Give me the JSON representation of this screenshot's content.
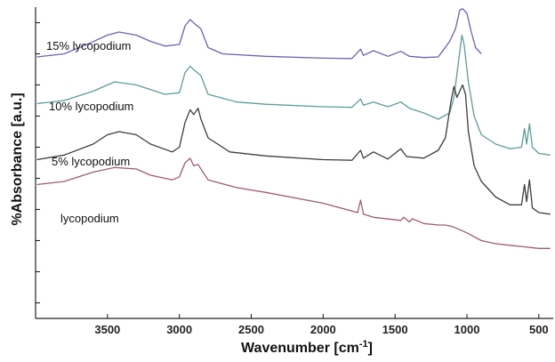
{
  "chart_data": {
    "type": "line",
    "title": "",
    "xlabel": "Wavenumber [cm",
    "xlabel_sup": "-1",
    "xlabel_end": "]",
    "ylabel": "%Absorbance [a.u.]",
    "x_reversed": true,
    "xlim": [
      4000,
      400
    ],
    "ylim": [
      0,
      10
    ],
    "xticks": [
      3500,
      3000,
      2500,
      2000,
      1500,
      1000,
      500
    ],
    "yticks_unlabeled": 10,
    "grid": false,
    "series": [
      {
        "name": "15% lycopodium",
        "color": "#6a62b5",
        "points": [
          [
            3990,
            8.4
          ],
          [
            3800,
            8.5
          ],
          [
            3620,
            8.85
          ],
          [
            3500,
            9.1
          ],
          [
            3420,
            9.2
          ],
          [
            3300,
            9.1
          ],
          [
            3200,
            8.9
          ],
          [
            3100,
            8.75
          ],
          [
            3000,
            8.8
          ],
          [
            2960,
            9.4
          ],
          [
            2925,
            9.6
          ],
          [
            2890,
            9.45
          ],
          [
            2850,
            9.3
          ],
          [
            2800,
            8.7
          ],
          [
            2700,
            8.5
          ],
          [
            2400,
            8.42
          ],
          [
            2000,
            8.36
          ],
          [
            1800,
            8.35
          ],
          [
            1740,
            8.65
          ],
          [
            1720,
            8.45
          ],
          [
            1650,
            8.6
          ],
          [
            1550,
            8.42
          ],
          [
            1460,
            8.58
          ],
          [
            1400,
            8.42
          ],
          [
            1300,
            8.38
          ],
          [
            1200,
            8.4
          ],
          [
            1120,
            8.9
          ],
          [
            1080,
            9.3
          ],
          [
            1050,
            9.9
          ],
          [
            1030,
            9.95
          ],
          [
            1000,
            9.8
          ],
          [
            970,
            9.2
          ],
          [
            940,
            8.7
          ],
          [
            900,
            8.5
          ]
        ]
      },
      {
        "name": "10% lycopodium",
        "color": "#5b9e9a",
        "points": [
          [
            3990,
            6.9
          ],
          [
            3800,
            7.0
          ],
          [
            3600,
            7.3
          ],
          [
            3450,
            7.6
          ],
          [
            3300,
            7.5
          ],
          [
            3100,
            7.2
          ],
          [
            3000,
            7.25
          ],
          [
            2960,
            7.9
          ],
          [
            2925,
            8.1
          ],
          [
            2890,
            7.95
          ],
          [
            2850,
            7.8
          ],
          [
            2800,
            7.2
          ],
          [
            2600,
            6.95
          ],
          [
            2400,
            6.88
          ],
          [
            2000,
            6.8
          ],
          [
            1800,
            6.78
          ],
          [
            1740,
            7.05
          ],
          [
            1720,
            6.85
          ],
          [
            1650,
            6.95
          ],
          [
            1550,
            6.8
          ],
          [
            1460,
            6.95
          ],
          [
            1400,
            6.75
          ],
          [
            1300,
            6.6
          ],
          [
            1200,
            6.4
          ],
          [
            1120,
            6.6
          ],
          [
            1090,
            7.1
          ],
          [
            1060,
            8.2
          ],
          [
            1035,
            9.1
          ],
          [
            1020,
            8.8
          ],
          [
            990,
            7.6
          ],
          [
            950,
            6.5
          ],
          [
            900,
            5.9
          ],
          [
            800,
            5.6
          ],
          [
            700,
            5.45
          ],
          [
            620,
            5.5
          ],
          [
            600,
            6.1
          ],
          [
            585,
            5.6
          ],
          [
            565,
            6.25
          ],
          [
            545,
            5.5
          ],
          [
            500,
            5.3
          ],
          [
            420,
            5.25
          ]
        ]
      },
      {
        "name": "5% lycopodium",
        "color": "#3d3d3d",
        "points": [
          [
            3990,
            5.1
          ],
          [
            3800,
            5.25
          ],
          [
            3600,
            5.6
          ],
          [
            3500,
            5.9
          ],
          [
            3420,
            6.0
          ],
          [
            3300,
            5.9
          ],
          [
            3200,
            5.6
          ],
          [
            3050,
            5.35
          ],
          [
            3000,
            5.5
          ],
          [
            2960,
            6.3
          ],
          [
            2925,
            6.7
          ],
          [
            2900,
            6.55
          ],
          [
            2870,
            6.75
          ],
          [
            2850,
            6.4
          ],
          [
            2800,
            5.8
          ],
          [
            2650,
            5.35
          ],
          [
            2400,
            5.22
          ],
          [
            2000,
            5.1
          ],
          [
            1800,
            5.08
          ],
          [
            1740,
            5.4
          ],
          [
            1720,
            5.15
          ],
          [
            1650,
            5.35
          ],
          [
            1550,
            5.12
          ],
          [
            1460,
            5.45
          ],
          [
            1420,
            5.2
          ],
          [
            1300,
            5.15
          ],
          [
            1200,
            5.4
          ],
          [
            1150,
            5.8
          ],
          [
            1110,
            7.0
          ],
          [
            1090,
            7.45
          ],
          [
            1070,
            7.1
          ],
          [
            1050,
            7.3
          ],
          [
            1030,
            7.5
          ],
          [
            1010,
            7.2
          ],
          [
            990,
            6.0
          ],
          [
            950,
            4.9
          ],
          [
            900,
            4.4
          ],
          [
            800,
            3.9
          ],
          [
            700,
            3.65
          ],
          [
            620,
            3.65
          ],
          [
            600,
            4.3
          ],
          [
            585,
            3.75
          ],
          [
            565,
            4.45
          ],
          [
            545,
            3.55
          ],
          [
            500,
            3.4
          ],
          [
            420,
            3.35
          ]
        ]
      },
      {
        "name": "lycopodium",
        "color": "#a05c6e",
        "points": [
          [
            3990,
            4.3
          ],
          [
            3800,
            4.4
          ],
          [
            3600,
            4.7
          ],
          [
            3450,
            4.85
          ],
          [
            3300,
            4.8
          ],
          [
            3200,
            4.6
          ],
          [
            3050,
            4.45
          ],
          [
            3000,
            4.55
          ],
          [
            2960,
            5.0
          ],
          [
            2925,
            5.15
          ],
          [
            2900,
            4.9
          ],
          [
            2870,
            4.95
          ],
          [
            2850,
            4.8
          ],
          [
            2800,
            4.45
          ],
          [
            2600,
            4.2
          ],
          [
            2400,
            4.05
          ],
          [
            2000,
            3.7
          ],
          [
            1800,
            3.45
          ],
          [
            1760,
            3.4
          ],
          [
            1740,
            3.8
          ],
          [
            1720,
            3.35
          ],
          [
            1650,
            3.25
          ],
          [
            1460,
            3.15
          ],
          [
            1440,
            3.25
          ],
          [
            1400,
            3.1
          ],
          [
            1380,
            3.2
          ],
          [
            1300,
            3.05
          ],
          [
            1200,
            3.0
          ],
          [
            1150,
            3.0
          ],
          [
            1100,
            2.95
          ],
          [
            1000,
            2.75
          ],
          [
            900,
            2.5
          ],
          [
            800,
            2.4
          ],
          [
            700,
            2.35
          ],
          [
            600,
            2.3
          ],
          [
            500,
            2.25
          ],
          [
            420,
            2.25
          ]
        ]
      }
    ]
  }
}
